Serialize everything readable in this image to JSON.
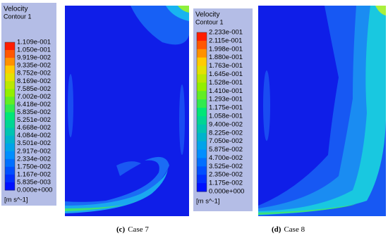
{
  "panels": [
    {
      "legend": {
        "title": "Velocity",
        "subtitle": "Contour 1",
        "labels": [
          "1.109e-001",
          "1.050e-001",
          "9.919e-002",
          "9.335e-002",
          "8.752e-002",
          "8.169e-002",
          "7.585e-002",
          "7.002e-002",
          "6.418e-002",
          "5.835e-002",
          "5.251e-002",
          "4.668e-002",
          "4.084e-002",
          "3.501e-002",
          "2.917e-002",
          "2.334e-002",
          "1.750e-002",
          "1.167e-002",
          "5.835e-003",
          "0.000e+000"
        ],
        "unit": "[m s^-1]"
      },
      "caption": {
        "label": "(c)",
        "text": "Case 7"
      }
    },
    {
      "legend": {
        "title": "Velocity",
        "subtitle": "Contour 1",
        "labels": [
          "2.233e-001",
          "2.115e-001",
          "1.998e-001",
          "1.880e-001",
          "1.763e-001",
          "1.645e-001",
          "1.528e-001",
          "1.410e-001",
          "1.293e-001",
          "1.175e-001",
          "1.058e-001",
          "9.400e-002",
          "8.225e-002",
          "7.050e-002",
          "5.875e-002",
          "4.700e-002",
          "3.525e-002",
          "2.350e-002",
          "1.175e-002",
          "0.000e+000"
        ],
        "unit": "[m s^-1]"
      },
      "caption": {
        "label": "(d)",
        "text": "Case 8"
      }
    }
  ]
}
